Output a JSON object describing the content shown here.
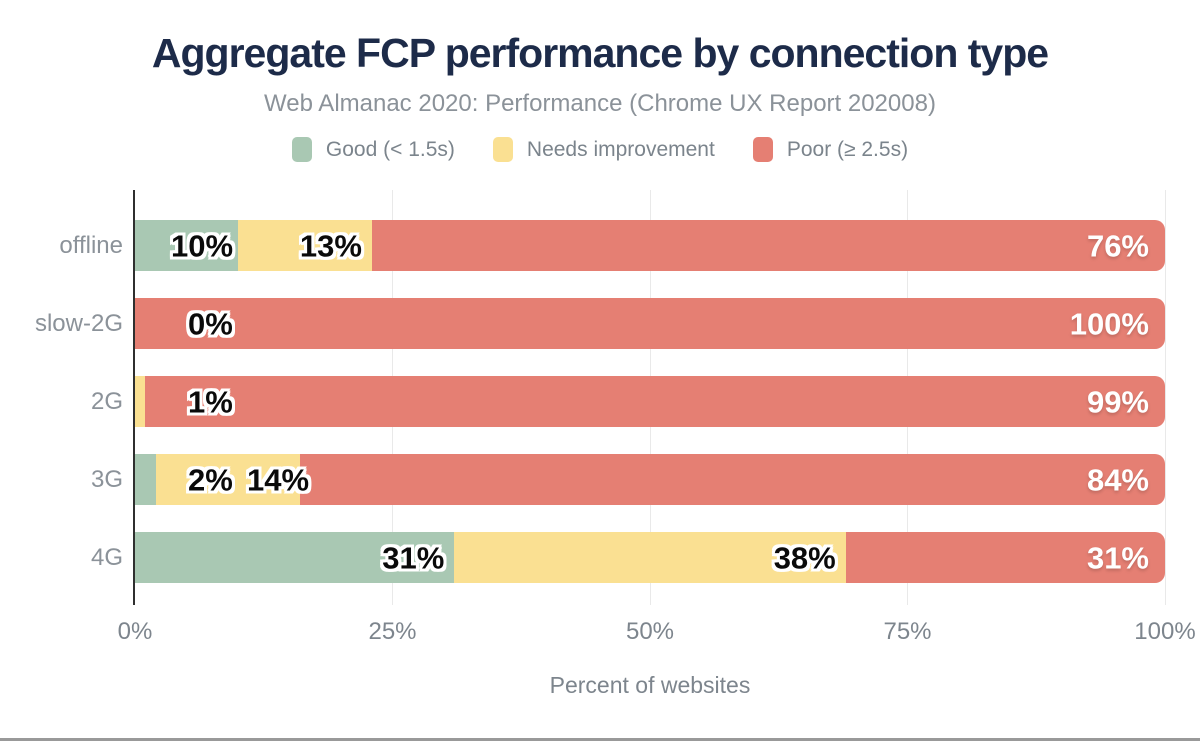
{
  "chart_data": {
    "type": "bar",
    "orientation": "horizontal-stacked",
    "title": "Aggregate FCP performance by connection type",
    "subtitle": "Web Almanac 2020: Performance (Chrome UX Report 202008)",
    "xlabel": "Percent of websites",
    "xlim": [
      0,
      100
    ],
    "x_ticks": [
      {
        "value": 0,
        "label": "0%"
      },
      {
        "value": 25,
        "label": "25%"
      },
      {
        "value": 50,
        "label": "50%"
      },
      {
        "value": 75,
        "label": "75%"
      },
      {
        "value": 100,
        "label": "100%"
      }
    ],
    "grid": "vertical",
    "legend_position": "top",
    "categories": [
      "offline",
      "slow-2G",
      "2G",
      "3G",
      "4G"
    ],
    "series": [
      {
        "name": "Good (< 1.5s)",
        "key": "good",
        "color": "#a9c8b3",
        "values": [
          10,
          0,
          0,
          2,
          31
        ]
      },
      {
        "name": "Needs improvement",
        "key": "ni",
        "color": "#fae092",
        "values": [
          13,
          0,
          1,
          14,
          38
        ]
      },
      {
        "name": "Poor (≥ 2.5s)",
        "key": "poor",
        "color": "#e57f73",
        "values": [
          76,
          100,
          99,
          84,
          31
        ]
      }
    ],
    "data_labels": [
      [
        "10%",
        "13%",
        "76%"
      ],
      [
        null,
        "0%",
        "100%"
      ],
      [
        null,
        "1%",
        "99%"
      ],
      [
        "2%",
        "14%",
        "84%"
      ],
      [
        "31%",
        "38%",
        "31%"
      ]
    ]
  },
  "colors": {
    "title": "#1d2b49",
    "subtitle": "#8b9299",
    "axis_text": "#7d858d",
    "gridline": "#e9e9e9",
    "axis_line": "#2f2f2f",
    "good": "#a9c8b3",
    "needs_improvement": "#fae092",
    "poor": "#e57f73",
    "label_dark": "#0a0a0a",
    "label_light": "#ffffff",
    "bottom_bar": "#999999"
  }
}
